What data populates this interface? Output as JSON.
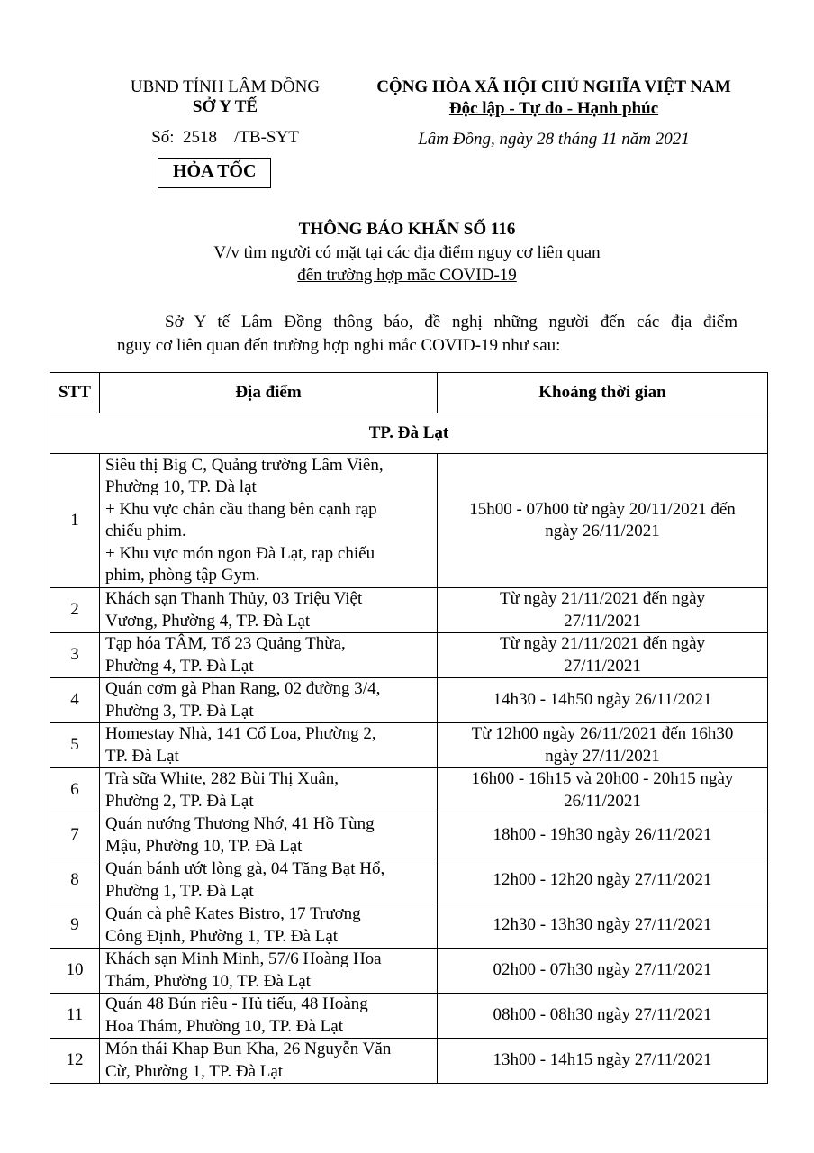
{
  "header": {
    "left": {
      "agency": "UBND TỈNH LÂM ĐỒNG",
      "department": "SỞ Y TẾ",
      "number": "Số:  2518    /TB-SYT",
      "urgency": "HỎA TỐC"
    },
    "right": {
      "nation": "CỘNG HÒA XÃ HỘI CHỦ NGHĨA VIỆT NAM",
      "motto": "Độc lập - Tự do - Hạnh phúc",
      "date": "Lâm Đồng, ngày 28 tháng 11 năm 2021"
    }
  },
  "title": {
    "main": "THÔNG BÁO KHẨN SỐ 116",
    "subtitle": [
      "V/v tìm người có mặt tại các địa điểm nguy cơ liên quan",
      "đến trường hợp mắc COVID-19"
    ]
  },
  "body": [
    "Sở Y tế Lâm Đồng thông báo, đề nghị những người đến các địa điểm",
    "nguy cơ liên quan đến trường hợp nghi mắc COVID-19 như sau:"
  ],
  "table": {
    "header": [
      "STT",
      "Địa điểm",
      "Khoảng thời gian"
    ],
    "section": "TP. Đà Lạt",
    "rows": [
      {
        "stt": "1",
        "location": [
          "Siêu thị Big C, Quảng trường Lâm Viên,",
          "Phường 10, TP. Đà lạt",
          "+ Khu vực chân cầu thang bên cạnh rạp",
          "chiếu phim.",
          "+ Khu vực món ngon Đà Lạt, rạp chiếu",
          "phim, phòng tập Gym."
        ],
        "time": [
          "15h00 - 07h00 từ ngày 20/11/2021 đến",
          "ngày 26/11/2021"
        ]
      },
      {
        "stt": "2",
        "location": [
          "Khách sạn Thanh Thủy, 03 Triệu Việt",
          "Vương, Phường 4, TP. Đà Lạt"
        ],
        "time": [
          "Từ ngày 21/11/2021 đến ngày",
          "27/11/2021"
        ]
      },
      {
        "stt": "3",
        "location": [
          "Tạp hóa TÂM, Tổ 23 Quảng Thừa,",
          "Phường 4, TP. Đà Lạt"
        ],
        "time": [
          "Từ ngày 21/11/2021 đến ngày",
          "27/11/2021"
        ]
      },
      {
        "stt": "4",
        "location": [
          "Quán cơm gà Phan Rang, 02 đường 3/4,",
          "Phường 3, TP. Đà Lạt"
        ],
        "time": [
          "14h30 - 14h50 ngày 26/11/2021"
        ]
      },
      {
        "stt": "5",
        "location": [
          "Homestay Nhà, 141 Cổ Loa, Phường 2,",
          "TP. Đà Lạt"
        ],
        "time": [
          "Từ 12h00 ngày 26/11/2021 đến 16h30",
          "ngày 27/11/2021"
        ]
      },
      {
        "stt": "6",
        "location": [
          "Trà sữa White, 282 Bùi Thị Xuân,",
          "Phường 2, TP. Đà Lạt"
        ],
        "time": [
          "16h00 - 16h15 và 20h00 - 20h15 ngày",
          "26/11/2021"
        ]
      },
      {
        "stt": "7",
        "location": [
          "Quán nướng Thương Nhớ, 41 Hồ Tùng",
          "Mậu, Phường 10, TP.  Đà Lạt"
        ],
        "time": [
          "18h00 - 19h30 ngày 26/11/2021"
        ]
      },
      {
        "stt": "8",
        "location": [
          "Quán bánh ướt lòng gà, 04 Tăng Bạt Hổ,",
          "Phường 1, TP. Đà Lạt"
        ],
        "time": [
          "12h00 - 12h20 ngày 27/11/2021"
        ]
      },
      {
        "stt": "9",
        "location": [
          "Quán cà phê Kates Bistro, 17 Trương",
          "Công Định, Phường 1, TP. Đà Lạt"
        ],
        "time": [
          "12h30 - 13h30 ngày 27/11/2021"
        ]
      },
      {
        "stt": "10",
        "location": [
          "Khách sạn Minh Minh, 57/6 Hoàng Hoa",
          "Thám, Phường 10, TP. Đà Lạt"
        ],
        "time": [
          "02h00 - 07h30 ngày 27/11/2021"
        ]
      },
      {
        "stt": "11",
        "location": [
          "Quán 48 Bún riêu - Hủ tiếu, 48 Hoàng",
          "Hoa Thám, Phường 10, TP. Đà Lạt"
        ],
        "time": [
          "08h00 - 08h30 ngày 27/11/2021"
        ]
      },
      {
        "stt": "12",
        "location": [
          "Món thái Khap Bun Kha, 26 Nguyễn Văn",
          "Cừ, Phường 1, TP. Đà Lạt"
        ],
        "time": [
          "13h00 - 14h15 ngày 27/11/2021"
        ]
      }
    ]
  }
}
